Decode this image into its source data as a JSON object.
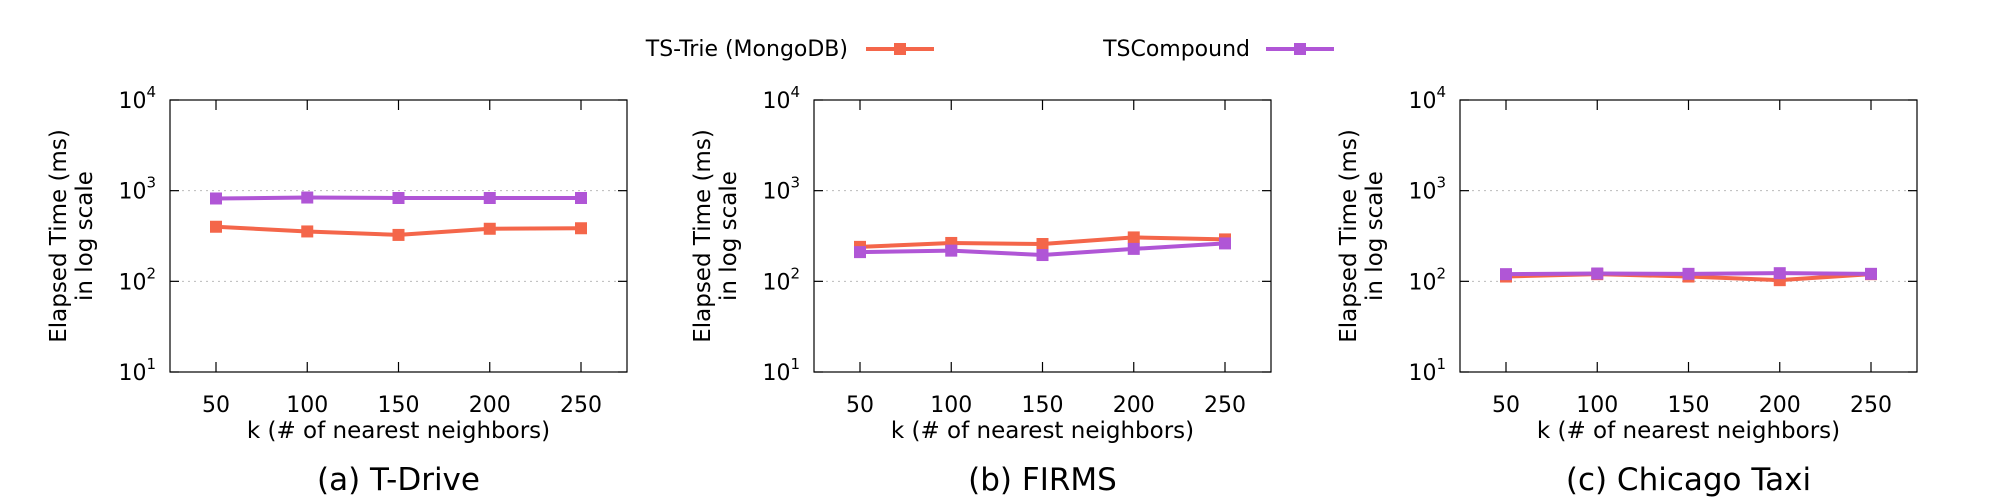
{
  "legend": {
    "placement": "top-center",
    "items": [
      {
        "label": "TS-Trie (MongoDB)",
        "color": "#f4664a"
      },
      {
        "label": "TSCompound",
        "color": "#b056d6"
      }
    ]
  },
  "chart_data": [
    {
      "type": "line",
      "caption": "(a) T-Drive",
      "xlabel": "k (# of nearest neighbors)",
      "ylabel_line1": "Elapsed Time (ms)",
      "ylabel_line2": "in log scale",
      "y_scale": "log",
      "ylim": [
        10,
        10000
      ],
      "y_ticks": [
        10,
        100,
        1000,
        10000
      ],
      "grid": "horizontal dotted",
      "x": [
        50,
        100,
        150,
        200,
        250
      ],
      "series": [
        {
          "name": "TS-Trie (MongoDB)",
          "color": "#f4664a",
          "values": [
            400,
            355,
            325,
            380,
            385
          ]
        },
        {
          "name": "TSCompound",
          "color": "#b056d6",
          "values": [
            820,
            840,
            830,
            830,
            830
          ]
        }
      ]
    },
    {
      "type": "line",
      "caption": "(b) FIRMS",
      "xlabel": "k (# of nearest neighbors)",
      "ylabel_line1": "Elapsed Time (ms)",
      "ylabel_line2": "in log scale",
      "y_scale": "log",
      "ylim": [
        10,
        10000
      ],
      "y_ticks": [
        10,
        100,
        1000,
        10000
      ],
      "grid": "horizontal dotted",
      "x": [
        50,
        100,
        150,
        200,
        250
      ],
      "series": [
        {
          "name": "TS-Trie (MongoDB)",
          "color": "#f4664a",
          "values": [
            240,
            265,
            258,
            305,
            290
          ]
        },
        {
          "name": "TSCompound",
          "color": "#b056d6",
          "values": [
            210,
            218,
            195,
            228,
            262
          ]
        }
      ]
    },
    {
      "type": "line",
      "caption": "(c) Chicago Taxi",
      "xlabel": "k (# of nearest neighbors)",
      "ylabel_line1": "Elapsed Time (ms)",
      "ylabel_line2": "in log scale",
      "y_scale": "log",
      "ylim": [
        10,
        10000
      ],
      "y_ticks": [
        10,
        100,
        1000,
        10000
      ],
      "grid": "horizontal dotted",
      "x": [
        50,
        100,
        150,
        200,
        250
      ],
      "series": [
        {
          "name": "TS-Trie (MongoDB)",
          "color": "#f4664a",
          "values": [
            113,
            120,
            113,
            103,
            120
          ]
        },
        {
          "name": "TSCompound",
          "color": "#b056d6",
          "values": [
            120,
            122,
            121,
            123,
            121
          ]
        }
      ]
    }
  ]
}
